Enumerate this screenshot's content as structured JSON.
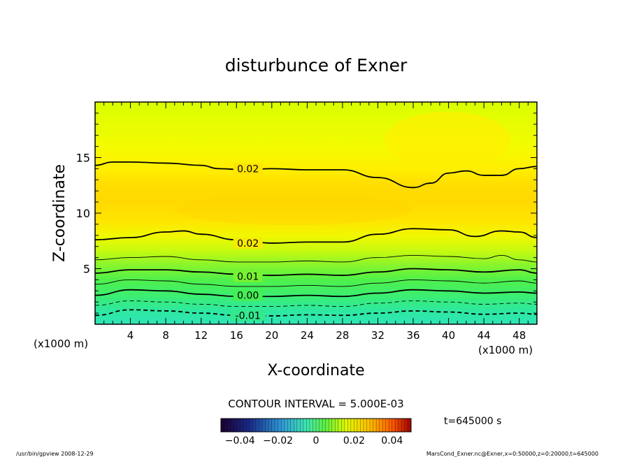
{
  "chart_data": {
    "type": "contour",
    "title": "disturbunce of Exner",
    "xlabel": "X-coordinate",
    "ylabel": "Z-coordinate",
    "x_unit": "(x1000 m)",
    "z_unit": "(x1000 m)",
    "xlim": [
      0,
      50
    ],
    "ylim": [
      0,
      20
    ],
    "x_ticks": [
      4,
      8,
      12,
      16,
      20,
      24,
      28,
      32,
      36,
      40,
      44,
      48
    ],
    "y_ticks": [
      5,
      10,
      15
    ],
    "contour_interval_label": "CONTOUR INTERVAL = 5.000E-03",
    "contour_levels": [
      -0.01,
      -0.005,
      0.0,
      0.005,
      0.01,
      0.015,
      0.02
    ],
    "contour_labels": [
      {
        "text": "0.02",
        "x": 17.3,
        "z": 14.0
      },
      {
        "text": "0.02",
        "x": 17.3,
        "z": 7.3
      },
      {
        "text": "0.01",
        "x": 17.3,
        "z": 4.3
      },
      {
        "text": "0.00",
        "x": 17.3,
        "z": 2.6
      },
      {
        "text": "-0.01",
        "x": 17.3,
        "z": 0.8
      }
    ],
    "contours": [
      {
        "level": -0.01,
        "style": "dashed",
        "points": [
          [
            0,
            0.8
          ],
          [
            4,
            1.3
          ],
          [
            8,
            1.2
          ],
          [
            12,
            1.0
          ],
          [
            16,
            0.8
          ],
          [
            20,
            0.75
          ],
          [
            24,
            0.85
          ],
          [
            28,
            0.8
          ],
          [
            32,
            1.0
          ],
          [
            36,
            1.2
          ],
          [
            40,
            1.1
          ],
          [
            44,
            0.9
          ],
          [
            48,
            1.0
          ],
          [
            50,
            0.9
          ]
        ]
      },
      {
        "level": -0.005,
        "style": "dashed",
        "points": [
          [
            0,
            1.7
          ],
          [
            4,
            2.1
          ],
          [
            8,
            2.0
          ],
          [
            12,
            1.8
          ],
          [
            16,
            1.6
          ],
          [
            20,
            1.6
          ],
          [
            24,
            1.7
          ],
          [
            28,
            1.6
          ],
          [
            32,
            1.9
          ],
          [
            36,
            2.1
          ],
          [
            40,
            2.0
          ],
          [
            44,
            1.8
          ],
          [
            48,
            1.9
          ],
          [
            50,
            1.8
          ]
        ]
      },
      {
        "level": 0.0,
        "style": "solid",
        "points": [
          [
            0,
            2.6
          ],
          [
            4,
            3.1
          ],
          [
            8,
            3.0
          ],
          [
            12,
            2.7
          ],
          [
            16,
            2.5
          ],
          [
            20,
            2.5
          ],
          [
            24,
            2.6
          ],
          [
            28,
            2.5
          ],
          [
            32,
            2.8
          ],
          [
            36,
            3.1
          ],
          [
            40,
            3.0
          ],
          [
            44,
            2.8
          ],
          [
            48,
            2.9
          ],
          [
            50,
            2.8
          ]
        ]
      },
      {
        "level": 0.005,
        "style": "solid",
        "points": [
          [
            0,
            3.6
          ],
          [
            4,
            4.0
          ],
          [
            8,
            3.9
          ],
          [
            12,
            3.6
          ],
          [
            16,
            3.4
          ],
          [
            20,
            3.4
          ],
          [
            24,
            3.5
          ],
          [
            28,
            3.4
          ],
          [
            32,
            3.7
          ],
          [
            36,
            4.0
          ],
          [
            40,
            3.9
          ],
          [
            44,
            3.7
          ],
          [
            48,
            3.9
          ],
          [
            50,
            3.7
          ]
        ]
      },
      {
        "level": 0.01,
        "style": "solid",
        "points": [
          [
            0,
            4.6
          ],
          [
            4,
            4.9
          ],
          [
            8,
            4.9
          ],
          [
            12,
            4.7
          ],
          [
            16,
            4.5
          ],
          [
            20,
            4.4
          ],
          [
            24,
            4.5
          ],
          [
            28,
            4.4
          ],
          [
            32,
            4.7
          ],
          [
            36,
            5.0
          ],
          [
            40,
            4.9
          ],
          [
            44,
            4.7
          ],
          [
            48,
            4.9
          ],
          [
            50,
            4.6
          ]
        ]
      },
      {
        "level": 0.015,
        "style": "solid",
        "points": [
          [
            0,
            5.8
          ],
          [
            4,
            6.0
          ],
          [
            8,
            6.1
          ],
          [
            12,
            5.8
          ],
          [
            16,
            5.6
          ],
          [
            20,
            5.6
          ],
          [
            24,
            5.7
          ],
          [
            28,
            5.6
          ],
          [
            32,
            6.0
          ],
          [
            36,
            6.2
          ],
          [
            40,
            6.1
          ],
          [
            44,
            5.9
          ],
          [
            46,
            6.2
          ],
          [
            48,
            5.8
          ],
          [
            50,
            5.6
          ]
        ]
      },
      {
        "level": 0.02,
        "style": "solid",
        "points": [
          [
            0,
            7.6
          ],
          [
            4,
            7.8
          ],
          [
            8,
            8.3
          ],
          [
            10,
            8.4
          ],
          [
            12,
            8.1
          ],
          [
            16,
            7.6
          ],
          [
            20,
            7.3
          ],
          [
            24,
            7.4
          ],
          [
            28,
            7.4
          ],
          [
            32,
            8.1
          ],
          [
            36,
            8.6
          ],
          [
            40,
            8.5
          ],
          [
            43,
            7.9
          ],
          [
            46,
            8.4
          ],
          [
            48,
            8.3
          ],
          [
            50,
            7.8
          ]
        ]
      },
      {
        "level": 0.02,
        "style": "solid",
        "points": [
          [
            0,
            14.3
          ],
          [
            2,
            14.6
          ],
          [
            4,
            14.6
          ],
          [
            8,
            14.5
          ],
          [
            12,
            14.3
          ],
          [
            14,
            14.0
          ],
          [
            17,
            13.9
          ],
          [
            20,
            14.0
          ],
          [
            24,
            13.9
          ],
          [
            28,
            13.9
          ],
          [
            32,
            13.2
          ],
          [
            36,
            12.3
          ],
          [
            38,
            12.7
          ],
          [
            40,
            13.6
          ],
          [
            42,
            13.8
          ],
          [
            44,
            13.4
          ],
          [
            46,
            13.4
          ],
          [
            48,
            14.0
          ],
          [
            50,
            14.2
          ]
        ]
      }
    ],
    "colorbar": {
      "tick_labels": [
        "−0.04",
        "−0.02",
        "0",
        "0.02",
        "0.04"
      ],
      "tick_values": [
        -0.04,
        -0.02,
        0,
        0.02,
        0.04
      ],
      "range": [
        -0.05,
        0.05
      ]
    },
    "time_label": "t=645000 s",
    "footer_left": "/usr/bin/gpview   2008-12-29",
    "footer_right": "MarsCond_Exner.nc@Exner,x=0:50000,z=0:20000,t=645000",
    "colors": {
      "bottom": "#2ee6b5",
      "green": "#4ff04a",
      "lime": "#d9ff00",
      "yellow": "#ffef00",
      "gold": "#ffd900"
    }
  }
}
